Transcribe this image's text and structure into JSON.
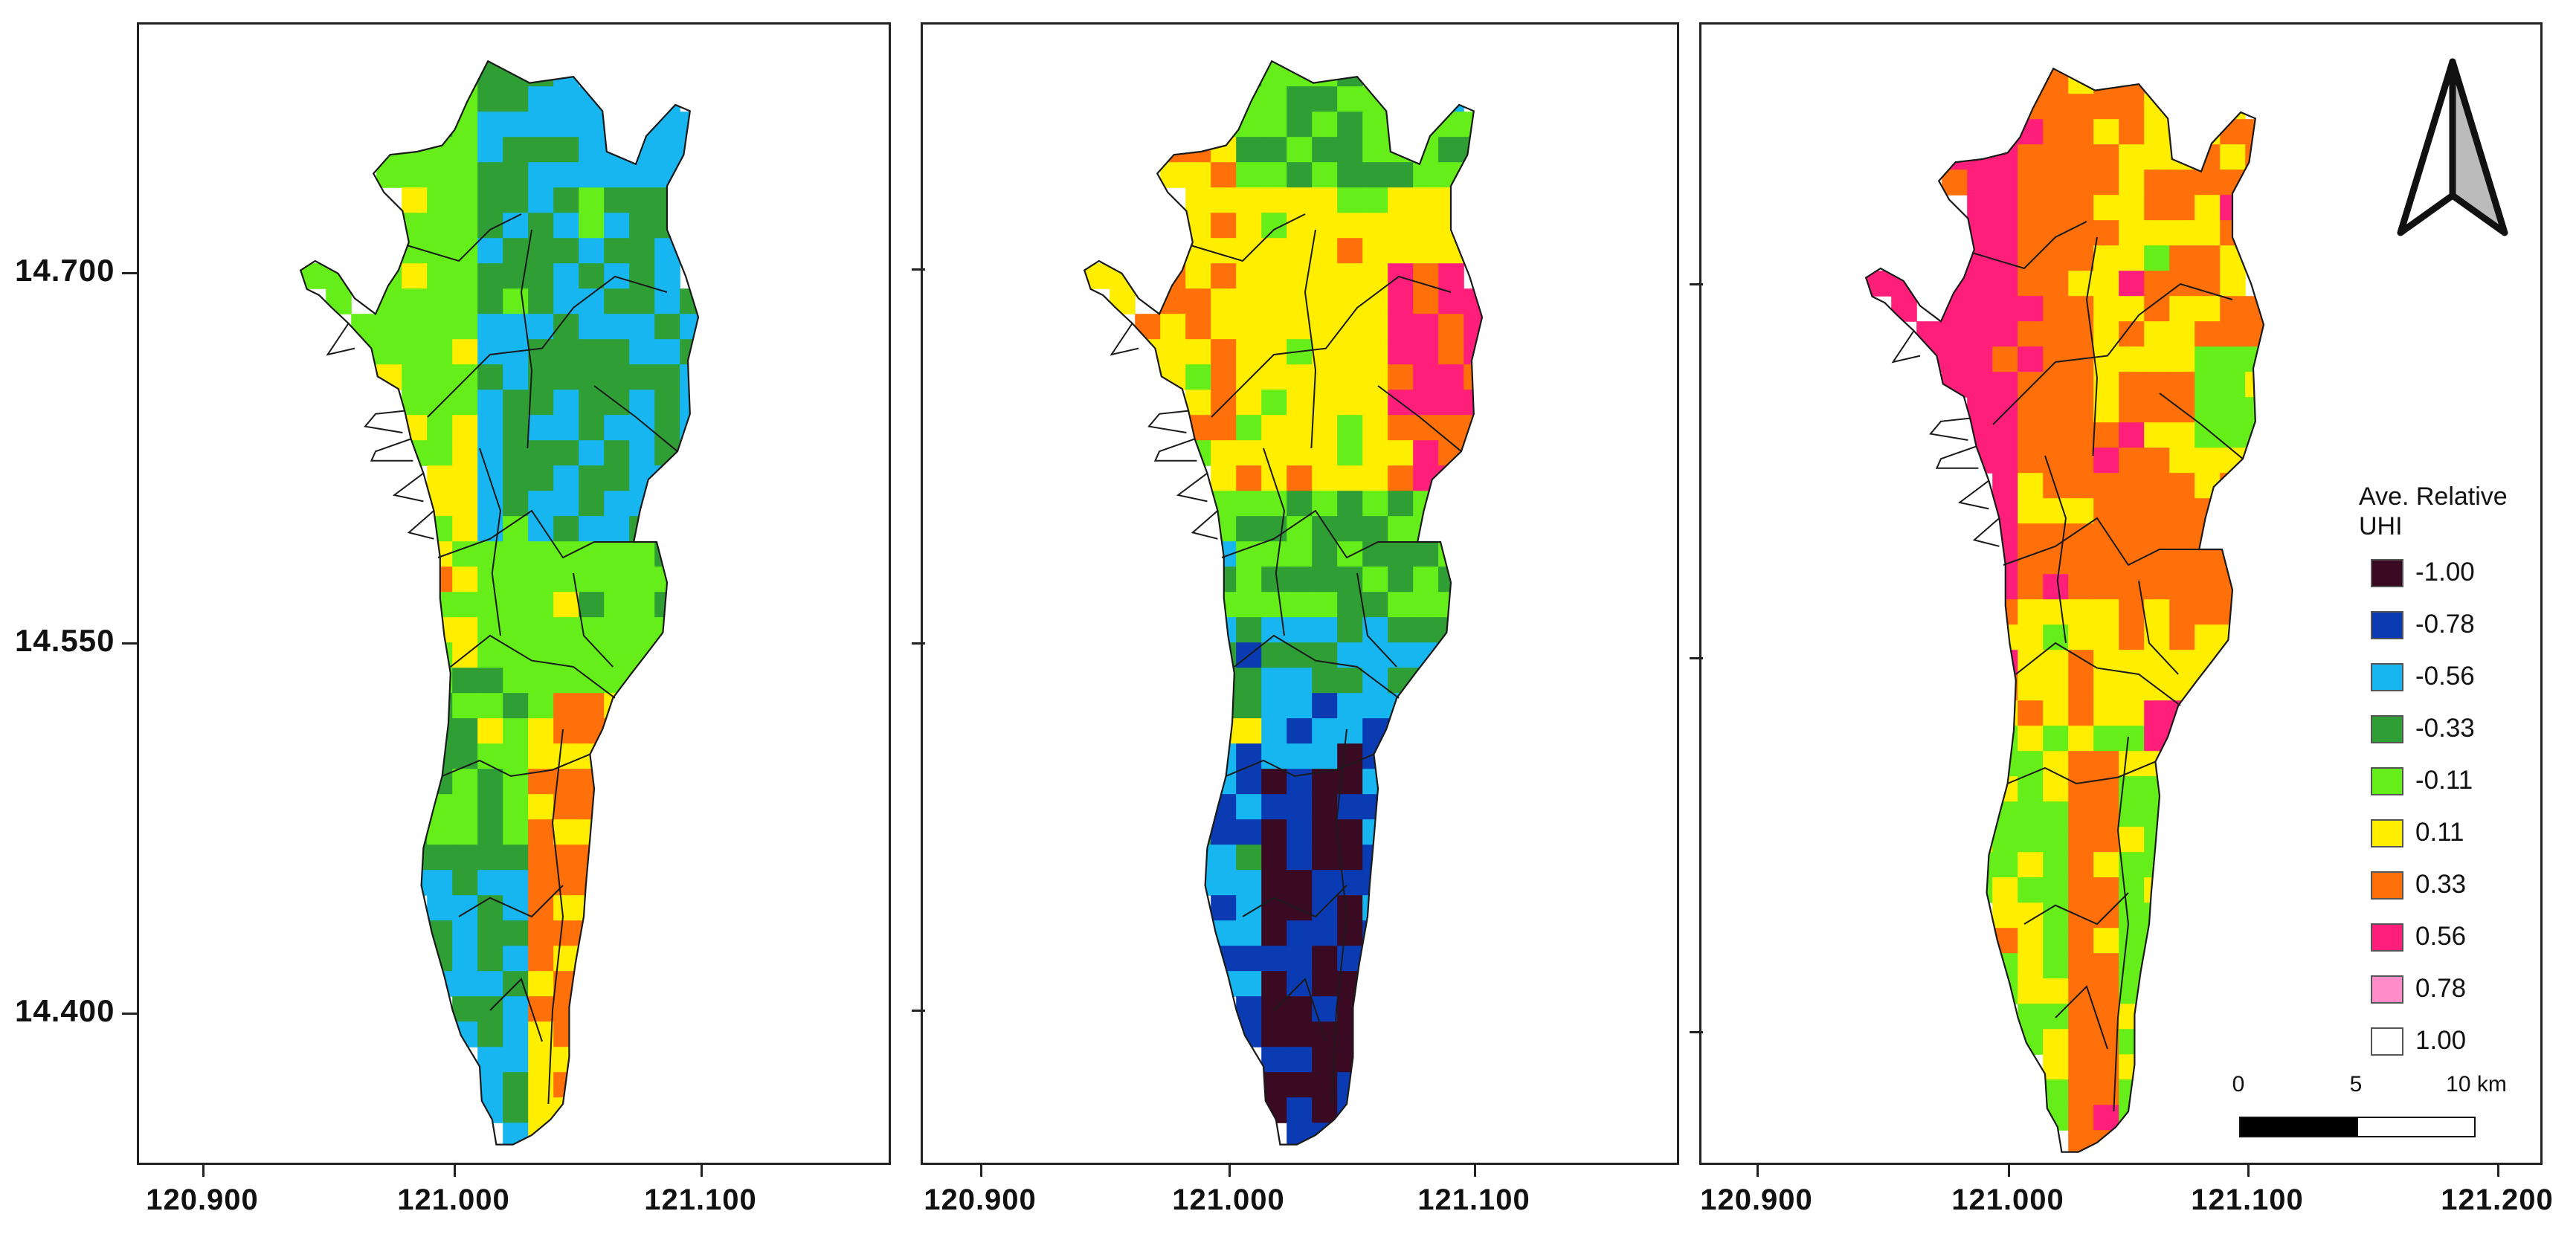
{
  "lat_labels": [
    "14.700",
    "14.550",
    "14.400"
  ],
  "lon_labels": [
    "120.900",
    "121.000",
    "121.100",
    "120.900",
    "121.000",
    "121.100",
    "120.900",
    "121.000",
    "121.100",
    "121.200"
  ],
  "legend": {
    "title_line1": "Ave. Relative",
    "title_line2": "UHI",
    "items": [
      {
        "label": "-1.00",
        "color": "#3a0a22"
      },
      {
        "label": "-0.78",
        "color": "#0b3bb3"
      },
      {
        "label": "-0.56",
        "color": "#17b6f0"
      },
      {
        "label": "-0.33",
        "color": "#2e9e35"
      },
      {
        "label": "-0.11",
        "color": "#66ee1a"
      },
      {
        "label": "0.11",
        "color": "#ffee00"
      },
      {
        "label": "0.33",
        "color": "#ff6f0a"
      },
      {
        "label": "0.56",
        "color": "#ff1f7a"
      },
      {
        "label": "0.78",
        "color": "#ff8ec8"
      },
      {
        "label": "1.00",
        "color": "#ffffff"
      }
    ]
  },
  "scale_bar": {
    "labels": [
      "0",
      "5",
      "10 km"
    ]
  },
  "north_arrow": {
    "icon": "north-arrow-icon"
  }
}
